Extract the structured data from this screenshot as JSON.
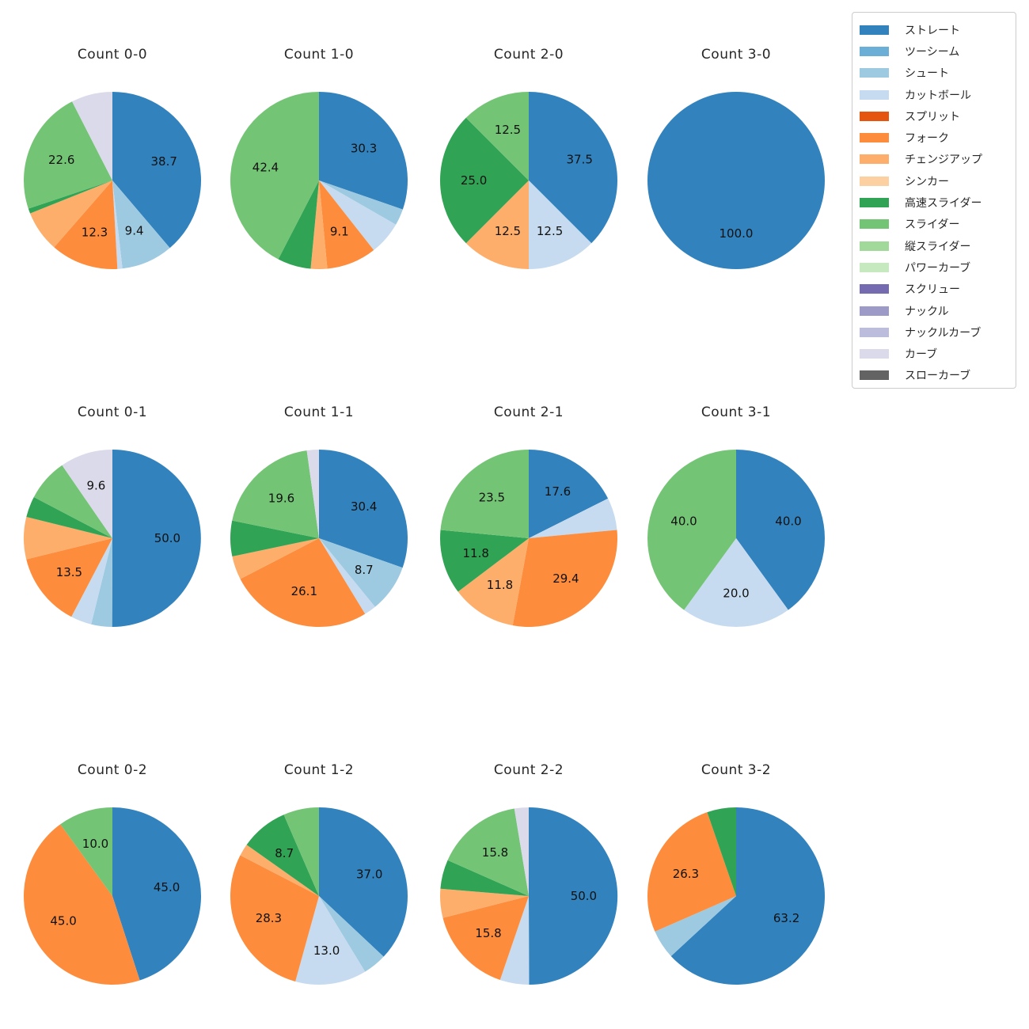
{
  "page": {
    "background": "#ffffff"
  },
  "colors": {
    "ストレート": "#3182bd",
    "ツーシーム": "#6baed6",
    "シュート": "#9ecae1",
    "カットボール": "#c6dbef",
    "スプリット": "#e6550d",
    "フォーク": "#fd8d3c",
    "チェンジアップ": "#fdae6b",
    "シンカー": "#fdd0a2",
    "高速スライダー": "#31a354",
    "スライダー": "#74c476",
    "縦スライダー": "#a1d99b",
    "パワーカーブ": "#c7e9c0",
    "スクリュー": "#756bb1",
    "ナックル": "#9e9ac8",
    "ナックルカーブ": "#bcbddc",
    "カーブ": "#dadaeb",
    "スローカーブ": "#636363"
  },
  "legend": {
    "items": [
      {
        "label": "ストレート"
      },
      {
        "label": "ツーシーム"
      },
      {
        "label": "シュート"
      },
      {
        "label": "カットボール"
      },
      {
        "label": "スプリット"
      },
      {
        "label": "フォーク"
      },
      {
        "label": "チェンジアップ"
      },
      {
        "label": "シンカー"
      },
      {
        "label": "高速スライダー"
      },
      {
        "label": "スライダー"
      },
      {
        "label": "縦スライダー"
      },
      {
        "label": "パワーカーブ"
      },
      {
        "label": "スクリュー"
      },
      {
        "label": "ナックル"
      },
      {
        "label": "ナックルカーブ"
      },
      {
        "label": "カーブ"
      },
      {
        "label": "スローカーブ"
      }
    ]
  },
  "label_rule": {
    "min_pct_to_show": 8.5,
    "pct_decimals": 1
  },
  "chart_data": [
    {
      "type": "pie",
      "title": "Count 0-0",
      "slices": [
        {
          "label": "ストレート",
          "pct": 38.7
        },
        {
          "label": "シュート",
          "pct": 9.4
        },
        {
          "label": "カットボール",
          "pct": 0.9
        },
        {
          "label": "フォーク",
          "pct": 12.3
        },
        {
          "label": "チェンジアップ",
          "pct": 7.5
        },
        {
          "label": "高速スライダー",
          "pct": 0.9
        },
        {
          "label": "スライダー",
          "pct": 22.6
        },
        {
          "label": "カーブ",
          "pct": 7.5
        }
      ]
    },
    {
      "type": "pie",
      "title": "Count 1-0",
      "slices": [
        {
          "label": "ストレート",
          "pct": 30.3
        },
        {
          "label": "シュート",
          "pct": 3.0
        },
        {
          "label": "カットボール",
          "pct": 6.1
        },
        {
          "label": "フォーク",
          "pct": 9.1
        },
        {
          "label": "チェンジアップ",
          "pct": 3.0
        },
        {
          "label": "高速スライダー",
          "pct": 6.1
        },
        {
          "label": "スライダー",
          "pct": 42.4
        }
      ]
    },
    {
      "type": "pie",
      "title": "Count 2-0",
      "slices": [
        {
          "label": "ストレート",
          "pct": 37.5
        },
        {
          "label": "カットボール",
          "pct": 12.5
        },
        {
          "label": "チェンジアップ",
          "pct": 12.5
        },
        {
          "label": "高速スライダー",
          "pct": 25.0
        },
        {
          "label": "スライダー",
          "pct": 12.5
        }
      ]
    },
    {
      "type": "pie",
      "title": "Count 3-0",
      "slices": [
        {
          "label": "ストレート",
          "pct": 100.0
        }
      ]
    },
    {
      "type": "pie",
      "title": "Count 0-1",
      "slices": [
        {
          "label": "ストレート",
          "pct": 50.0
        },
        {
          "label": "シュート",
          "pct": 3.8
        },
        {
          "label": "カットボール",
          "pct": 3.8
        },
        {
          "label": "フォーク",
          "pct": 13.5
        },
        {
          "label": "チェンジアップ",
          "pct": 7.7
        },
        {
          "label": "高速スライダー",
          "pct": 3.8
        },
        {
          "label": "スライダー",
          "pct": 7.7
        },
        {
          "label": "カーブ",
          "pct": 9.6
        }
      ]
    },
    {
      "type": "pie",
      "title": "Count 1-1",
      "slices": [
        {
          "label": "ストレート",
          "pct": 30.4
        },
        {
          "label": "シュート",
          "pct": 8.7
        },
        {
          "label": "カットボール",
          "pct": 2.2
        },
        {
          "label": "フォーク",
          "pct": 26.1
        },
        {
          "label": "チェンジアップ",
          "pct": 4.3
        },
        {
          "label": "高速スライダー",
          "pct": 6.5
        },
        {
          "label": "スライダー",
          "pct": 19.6
        },
        {
          "label": "カーブ",
          "pct": 2.2
        }
      ]
    },
    {
      "type": "pie",
      "title": "Count 2-1",
      "slices": [
        {
          "label": "ストレート",
          "pct": 17.6
        },
        {
          "label": "カットボール",
          "pct": 5.9
        },
        {
          "label": "フォーク",
          "pct": 29.4
        },
        {
          "label": "チェンジアップ",
          "pct": 11.8
        },
        {
          "label": "高速スライダー",
          "pct": 11.8
        },
        {
          "label": "スライダー",
          "pct": 23.5
        }
      ]
    },
    {
      "type": "pie",
      "title": "Count 3-1",
      "slices": [
        {
          "label": "ストレート",
          "pct": 40.0
        },
        {
          "label": "カットボール",
          "pct": 20.0
        },
        {
          "label": "スライダー",
          "pct": 40.0
        }
      ]
    },
    {
      "type": "pie",
      "title": "Count 0-2",
      "slices": [
        {
          "label": "ストレート",
          "pct": 45.0
        },
        {
          "label": "フォーク",
          "pct": 45.0
        },
        {
          "label": "スライダー",
          "pct": 10.0
        }
      ]
    },
    {
      "type": "pie",
      "title": "Count 1-2",
      "slices": [
        {
          "label": "ストレート",
          "pct": 37.0
        },
        {
          "label": "シュート",
          "pct": 4.3
        },
        {
          "label": "カットボール",
          "pct": 13.0
        },
        {
          "label": "フォーク",
          "pct": 28.3
        },
        {
          "label": "チェンジアップ",
          "pct": 2.2
        },
        {
          "label": "高速スライダー",
          "pct": 8.7
        },
        {
          "label": "スライダー",
          "pct": 6.5
        }
      ]
    },
    {
      "type": "pie",
      "title": "Count 2-2",
      "slices": [
        {
          "label": "ストレート",
          "pct": 50.0
        },
        {
          "label": "カットボール",
          "pct": 5.3
        },
        {
          "label": "フォーク",
          "pct": 15.8
        },
        {
          "label": "チェンジアップ",
          "pct": 5.3
        },
        {
          "label": "高速スライダー",
          "pct": 5.3
        },
        {
          "label": "スライダー",
          "pct": 15.8
        },
        {
          "label": "カーブ",
          "pct": 2.6
        }
      ]
    },
    {
      "type": "pie",
      "title": "Count 3-2",
      "slices": [
        {
          "label": "ストレート",
          "pct": 63.2
        },
        {
          "label": "シュート",
          "pct": 5.3
        },
        {
          "label": "フォーク",
          "pct": 26.3
        },
        {
          "label": "高速スライダー",
          "pct": 5.3
        }
      ]
    }
  ]
}
